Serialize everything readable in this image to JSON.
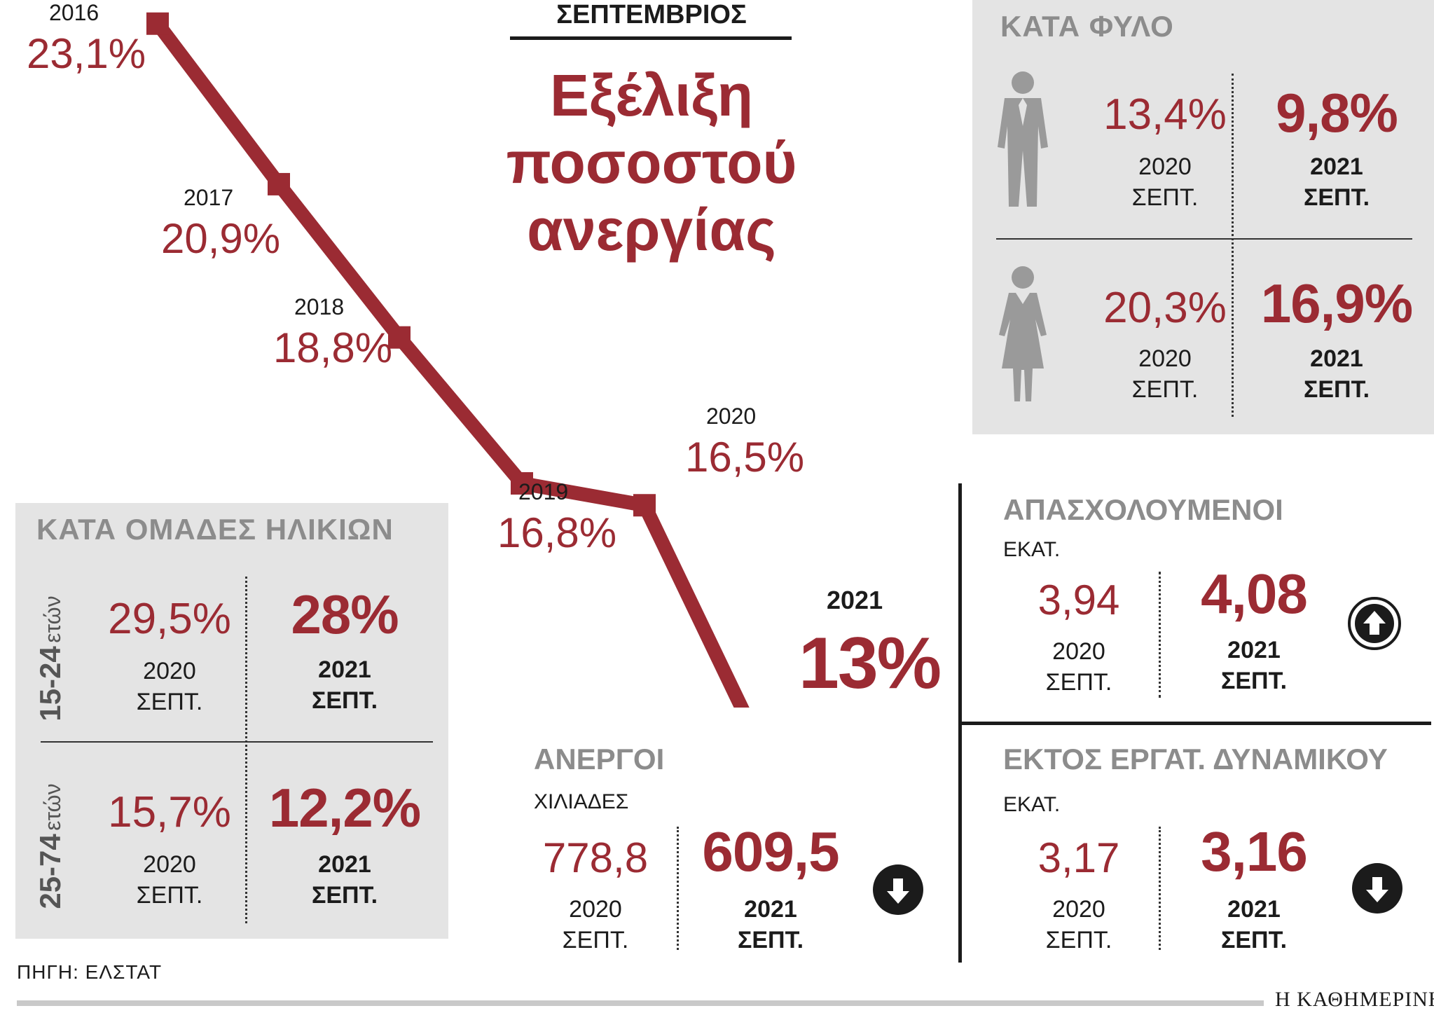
{
  "header": {
    "kicker": "ΣΕΠΤΕΜΒΡΙΟΣ",
    "title_lines": [
      "Εξέλιξη",
      "ποσοστού",
      "ανεργίας"
    ]
  },
  "chart_data": {
    "type": "line",
    "x": [
      "2016",
      "2017",
      "2018",
      "2019",
      "2020",
      "2021"
    ],
    "values": [
      23.1,
      20.9,
      18.8,
      16.8,
      16.5,
      13
    ],
    "value_labels": [
      "23,1%",
      "20,9%",
      "18,8%",
      "16,8%",
      "16,5%",
      "13%"
    ],
    "ylim": [
      12,
      24
    ],
    "grid": false,
    "color": "#9b2b33"
  },
  "gender": {
    "title": "ΚΑΤΑ ΦΥΛΟ",
    "men": {
      "icon": "man-icon",
      "prev_value": "13,4%",
      "prev_year": "2020",
      "prev_month": "ΣΕΠΤ.",
      "curr_value": "9,8%",
      "curr_year": "2021",
      "curr_month": "ΣΕΠΤ."
    },
    "women": {
      "icon": "woman-icon",
      "prev_value": "20,3%",
      "prev_year": "2020",
      "prev_month": "ΣΕΠΤ.",
      "curr_value": "16,9%",
      "curr_year": "2021",
      "curr_month": "ΣΕΠΤ."
    }
  },
  "age": {
    "title": "ΚΑΤΑ ΟΜΑΔΕΣ ΗΛΙΚΙΩΝ",
    "groups": [
      {
        "range": "15-24",
        "unit": "ετών",
        "prev_value": "29,5%",
        "prev_year": "2020",
        "prev_month": "ΣΕΠΤ.",
        "curr_value": "28%",
        "curr_year": "2021",
        "curr_month": "ΣΕΠΤ."
      },
      {
        "range": "25-74",
        "unit": "ετών",
        "prev_value": "15,7%",
        "prev_year": "2020",
        "prev_month": "ΣΕΠΤ.",
        "curr_value": "12,2%",
        "curr_year": "2021",
        "curr_month": "ΣΕΠΤ."
      }
    ]
  },
  "employed": {
    "title": "ΑΠΑΣΧΟΛΟΥΜΕΝΟΙ",
    "unit": "ΕΚΑΤ.",
    "prev_value": "3,94",
    "prev_year": "2020",
    "prev_month": "ΣΕΠΤ.",
    "curr_value": "4,08",
    "curr_year": "2021",
    "curr_month": "ΣΕΠΤ.",
    "trend": "up"
  },
  "unemployed": {
    "title": "ΑΝΕΡΓΟΙ",
    "unit": "ΧΙΛΙΑΔΕΣ",
    "prev_value": "778,8",
    "prev_year": "2020",
    "prev_month": "ΣΕΠΤ.",
    "curr_value": "609,5",
    "curr_year": "2021",
    "curr_month": "ΣΕΠΤ.",
    "trend": "down"
  },
  "inactive": {
    "title": "ΕΚΤΟΣ ΕΡΓΑΤ. ΔΥΝΑΜΙΚΟΥ",
    "unit": "ΕΚΑΤ.",
    "prev_value": "3,17",
    "prev_year": "2020",
    "prev_month": "ΣΕΠΤ.",
    "curr_value": "3,16",
    "curr_year": "2021",
    "curr_month": "ΣΕΠΤ.",
    "trend": "down"
  },
  "footer": {
    "source": "ΠΗΓΗ: ΕΛΣΤΑΤ",
    "brand": "Η ΚΑΘΗΜΕΡΙΝΗ"
  },
  "colors": {
    "accent": "#9b2b33",
    "panel": "#e4e4e4",
    "title_gray": "#8c8c8c",
    "text": "#1b1b1b"
  }
}
